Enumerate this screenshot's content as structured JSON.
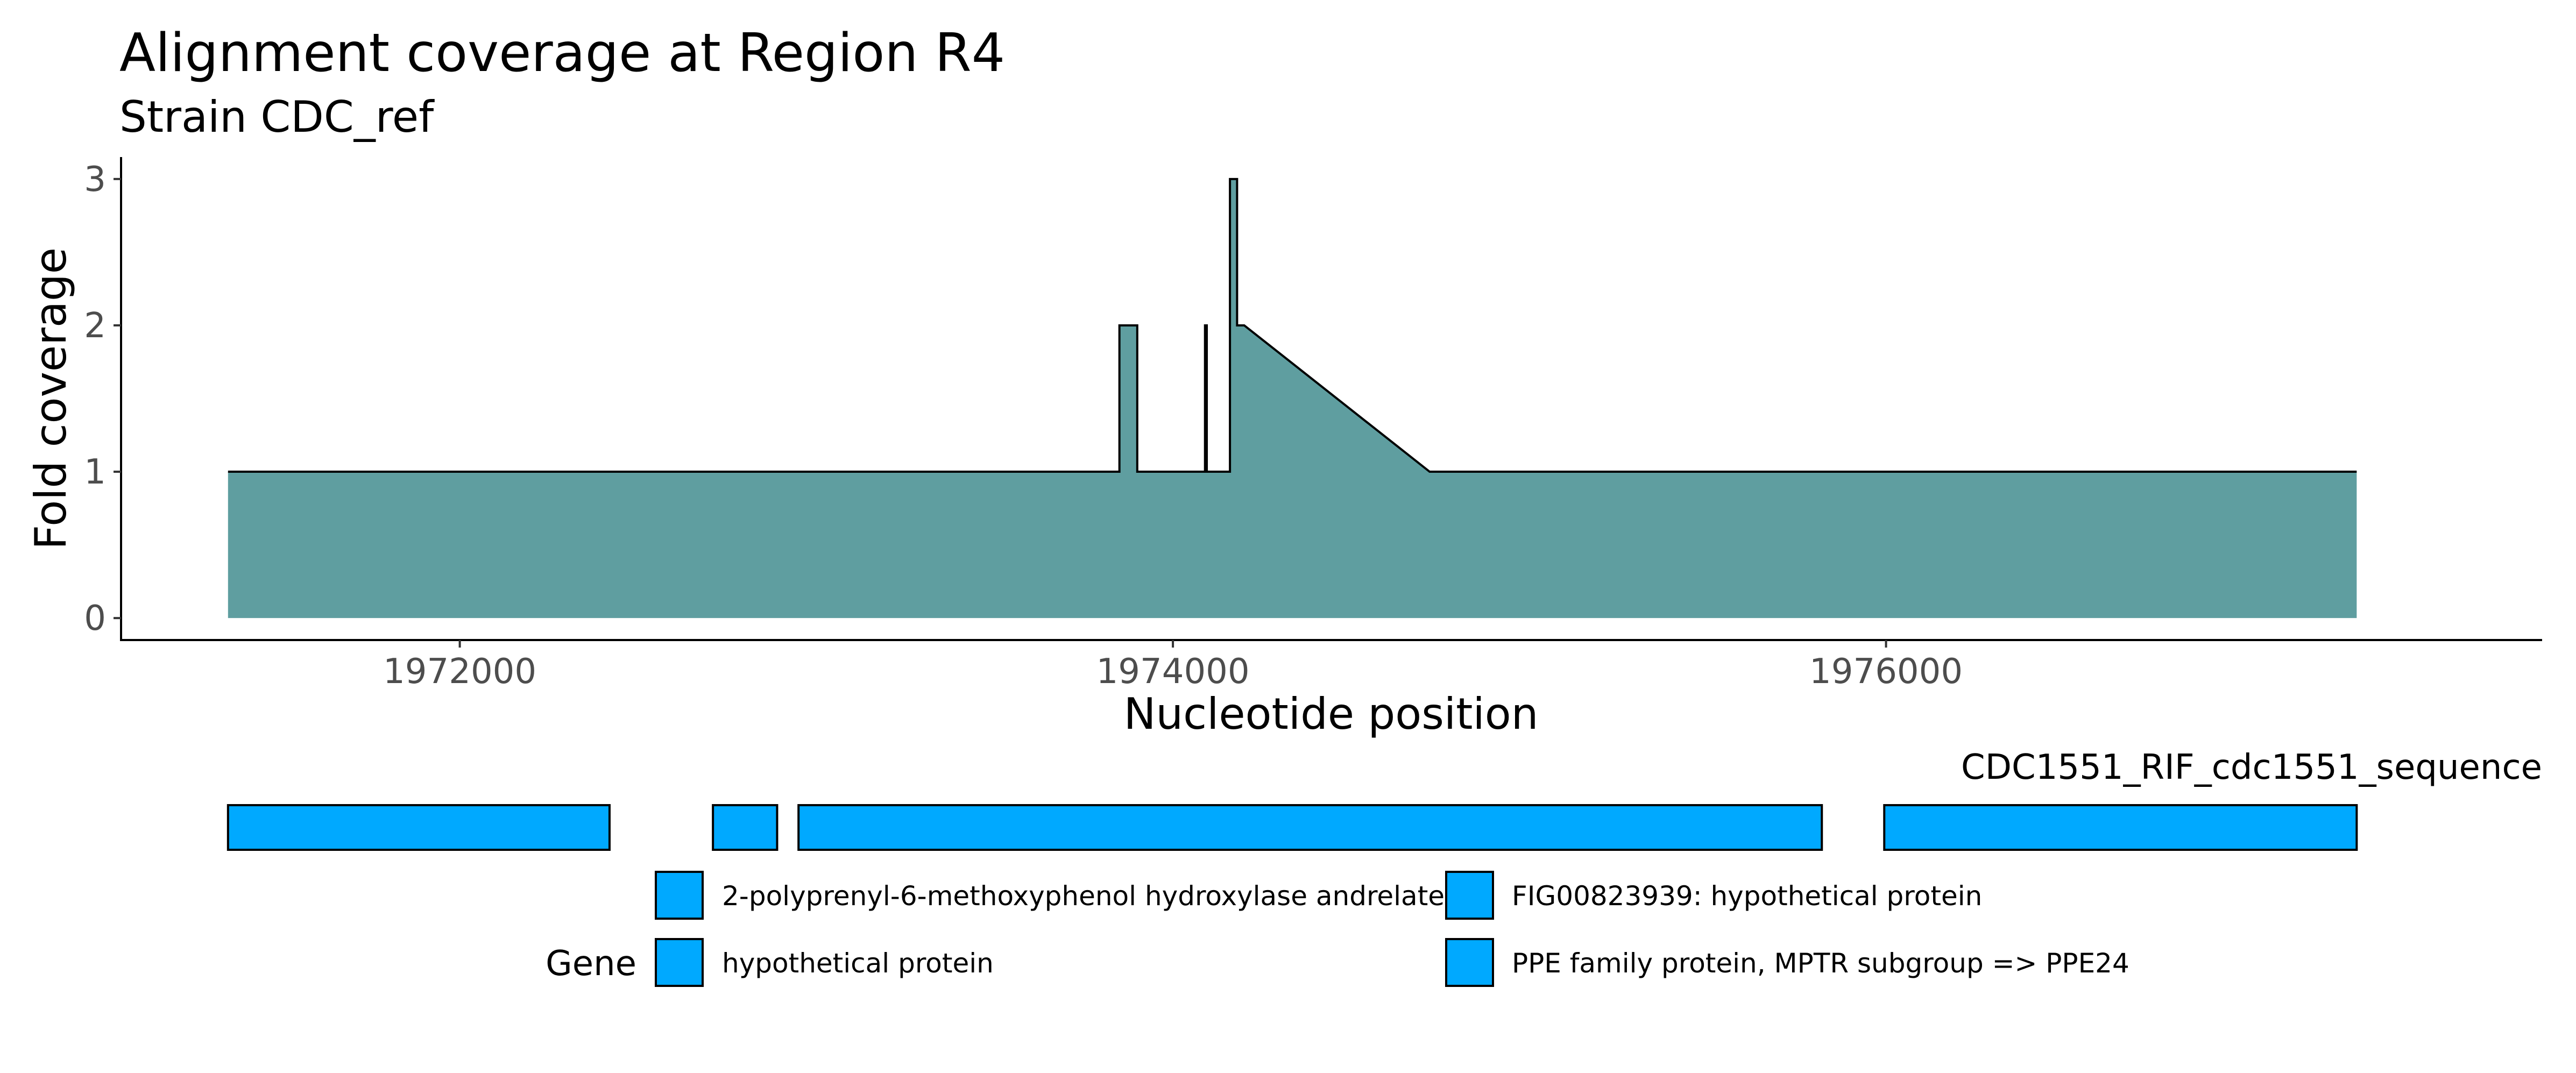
{
  "chart_data": {
    "type": "area",
    "title": "Alignment coverage at Region R4",
    "subtitle": "Strain CDC_ref",
    "xlabel": "Nucleotide position",
    "ylabel": "Fold coverage",
    "xlim": [
      1971050,
      1977840
    ],
    "ylim": [
      -0.15,
      3.15
    ],
    "x_ticks": [
      1972000,
      1974000,
      1976000
    ],
    "x_tick_labels": [
      "1972000",
      "1974000",
      "1976000"
    ],
    "y_ticks": [
      0,
      1,
      2,
      3
    ],
    "y_tick_labels": [
      "0",
      "1",
      "2",
      "3"
    ],
    "fill_color": "#5F9EA0",
    "grid": false,
    "x": [
      1971350,
      1973850,
      1973850,
      1973900,
      1973900,
      1974090,
      1974090,
      1974095,
      1974095,
      1974160,
      1974160,
      1974180,
      1974180,
      1974200,
      1974720,
      1977320
    ],
    "y": [
      1,
      1,
      2,
      2,
      1,
      1,
      2,
      2,
      1,
      1,
      3,
      3,
      2,
      2,
      1,
      1
    ],
    "gene_track": {
      "label": "CDC1551_RIF_cdc1551_sequence",
      "fill_color": "#00A9FF",
      "genes": [
        {
          "start": 1971350,
          "end": 1972420
        },
        {
          "start": 1972710,
          "end": 1972890
        },
        {
          "start": 1972950,
          "end": 1975820
        },
        {
          "start": 1975995,
          "end": 1977320
        }
      ]
    },
    "legend": {
      "title": "Gene",
      "placement": "bottom",
      "entries": [
        "2-polyprenyl-6-methoxyphenol hydroxylase andrelate",
        "hypothetical protein",
        "FIG00823939: hypothetical protein",
        "PPE family protein, MPTR subgroup => PPE24"
      ]
    }
  }
}
